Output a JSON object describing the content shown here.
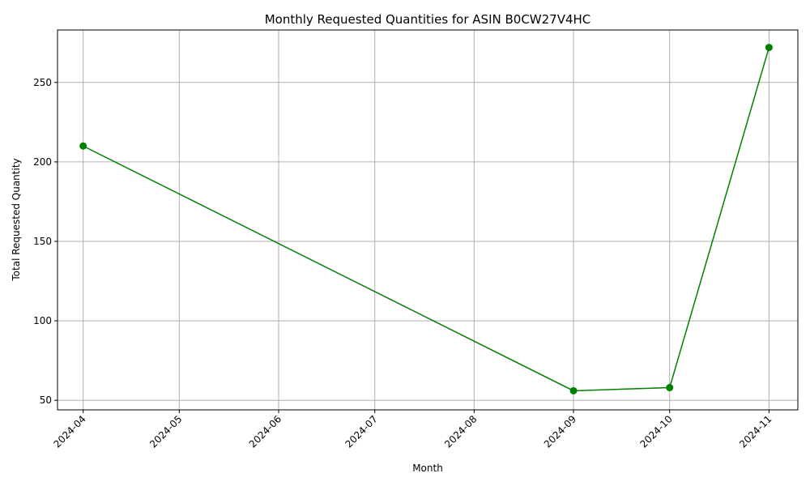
{
  "chart_data": {
    "type": "line",
    "title": "Monthly Requested Quantities for ASIN B0CW27V4HC",
    "xlabel": "Month",
    "ylabel": "Total Requested Quantity",
    "x_ticks": [
      "2024-04",
      "2024-05",
      "2024-06",
      "2024-07",
      "2024-08",
      "2024-09",
      "2024-10",
      "2024-11"
    ],
    "y_ticks": [
      50,
      100,
      150,
      200,
      250
    ],
    "ylim": [
      44,
      283
    ],
    "xlim": [
      "2024-03-24",
      "2024-11-10"
    ],
    "grid": true,
    "series": [
      {
        "color": "#008000",
        "marker": "circle",
        "points": [
          {
            "x": "2024-04-01",
            "y": 210
          },
          {
            "x": "2024-09-01",
            "y": 56
          },
          {
            "x": "2024-10-01",
            "y": 58
          },
          {
            "x": "2024-11-01",
            "y": 272
          }
        ]
      }
    ]
  }
}
